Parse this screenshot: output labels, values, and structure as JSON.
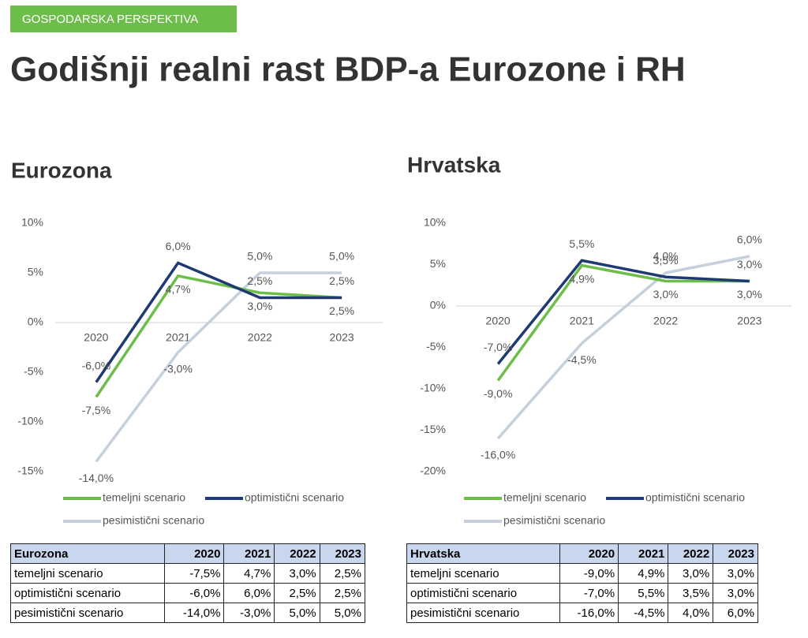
{
  "header": {
    "tag": "GOSPODARSKA PERSPEKTIVA",
    "title": "Godišnji realni rast BDP-a Eurozone i RH"
  },
  "chart_data": [
    {
      "type": "line",
      "title": "Eurozona",
      "categories": [
        "2020",
        "2021",
        "2022",
        "2023"
      ],
      "ylim": [
        -15,
        10
      ],
      "yticks": [
        {
          "value": -15,
          "label": "-15%"
        },
        {
          "value": -10,
          "label": "-10%"
        },
        {
          "value": -5,
          "label": "-5%"
        },
        {
          "value": 0,
          "label": "0%"
        },
        {
          "value": 5,
          "label": "5%"
        },
        {
          "value": 10,
          "label": "10%"
        }
      ],
      "series": [
        {
          "name": "temeljni scenario",
          "color": "#6dbd4b",
          "values": [
            -7.5,
            4.7,
            3.0,
            2.5
          ],
          "value_labels": [
            "-7,5%",
            "4,7%",
            "3,0%",
            "2,5%"
          ]
        },
        {
          "name": "optimistični scenario",
          "color": "#1f3a72",
          "values": [
            -6.0,
            6.0,
            2.5,
            2.5
          ],
          "value_labels": [
            "-6,0%",
            "6,0%",
            "2,5%",
            "2,5%"
          ]
        },
        {
          "name": "pesimistični scenario",
          "color": "#c6d0dc",
          "values": [
            -14.0,
            -3.0,
            5.0,
            5.0
          ],
          "value_labels": [
            "-14,0%",
            "-3,0%",
            "5,0%",
            "5,0%"
          ]
        }
      ]
    },
    {
      "type": "line",
      "title": "Hrvatska",
      "categories": [
        "2020",
        "2021",
        "2022",
        "2023"
      ],
      "ylim": [
        -20,
        10
      ],
      "yticks": [
        {
          "value": -20,
          "label": "-20%"
        },
        {
          "value": -15,
          "label": "-15%"
        },
        {
          "value": -10,
          "label": "-10%"
        },
        {
          "value": -5,
          "label": "-5%"
        },
        {
          "value": 0,
          "label": "0%"
        },
        {
          "value": 5,
          "label": "5%"
        },
        {
          "value": 10,
          "label": "10%"
        }
      ],
      "series": [
        {
          "name": "temeljni scenario",
          "color": "#6dbd4b",
          "values": [
            -9.0,
            4.9,
            3.0,
            3.0
          ],
          "value_labels": [
            "-9,0%",
            "4,9%",
            "3,0%",
            "3,0%"
          ]
        },
        {
          "name": "optimistični scenario",
          "color": "#1f3a72",
          "values": [
            -7.0,
            5.5,
            3.5,
            3.0
          ],
          "value_labels": [
            "-7,0%",
            "5,5%",
            "3,5%",
            "3,0%"
          ]
        },
        {
          "name": "pesimistični scenario",
          "color": "#c6d0dc",
          "values": [
            -16.0,
            -4.5,
            4.0,
            6.0
          ],
          "value_labels": [
            "-16,0%",
            "-4,5%",
            "4,0%",
            "6,0%"
          ]
        }
      ]
    }
  ],
  "tables": [
    {
      "rows": [
        [
          "Eurozona",
          "2020",
          "2021",
          "2022",
          "2023"
        ],
        [
          "temeljni scenario",
          "-7,5%",
          "4,7%",
          "3,0%",
          "2,5%"
        ],
        [
          "optimistični scenario",
          "-6,0%",
          "6,0%",
          "2,5%",
          "2,5%"
        ],
        [
          "pesimistični scenario",
          "-14,0%",
          "-3,0%",
          "5,0%",
          "5,0%"
        ]
      ]
    },
    {
      "rows": [
        [
          "Hrvatska",
          "2020",
          "2021",
          "2022",
          "2023"
        ],
        [
          "temeljni scenario",
          "-9,0%",
          "4,9%",
          "3,0%",
          "3,0%"
        ],
        [
          "optimistični scenario",
          "-7,0%",
          "5,5%",
          "3,5%",
          "3,0%"
        ],
        [
          "pesimistični scenario",
          "-16,0%",
          "-4,5%",
          "4,0%",
          "6,0%"
        ]
      ]
    }
  ]
}
